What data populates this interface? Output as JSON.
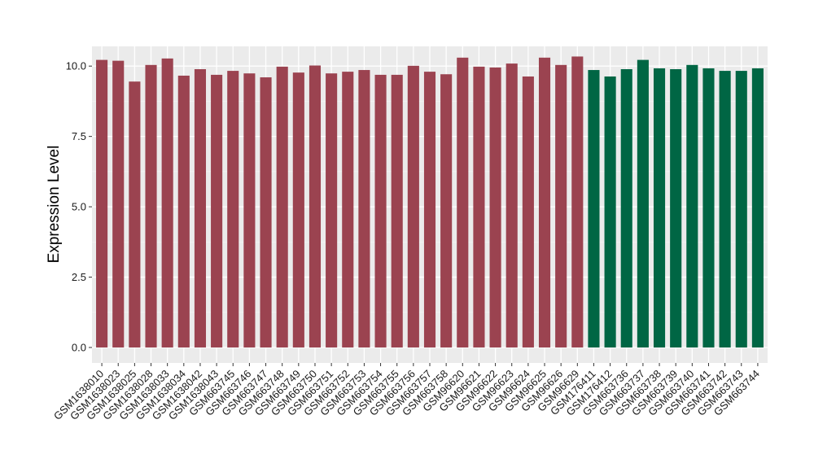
{
  "chart_data": {
    "type": "bar",
    "ylabel": "Expression Level",
    "ylim": [
      -0.55,
      10.7
    ],
    "yticks": [
      "0.0",
      "2.5",
      "5.0",
      "7.5",
      "10.0"
    ],
    "categories": [
      "GSM1638010",
      "GSM1638023",
      "GSM1638025",
      "GSM1638028",
      "GSM1638033",
      "GSM1638034",
      "GSM1638042",
      "GSM1638043",
      "GSM663745",
      "GSM663746",
      "GSM663747",
      "GSM663748",
      "GSM663749",
      "GSM663750",
      "GSM663751",
      "GSM663752",
      "GSM663753",
      "GSM663754",
      "GSM663755",
      "GSM663756",
      "GSM663757",
      "GSM663758",
      "GSM96620",
      "GSM96621",
      "GSM96622",
      "GSM96623",
      "GSM96624",
      "GSM96625",
      "GSM96626",
      "GSM96629",
      "GSM176411",
      "GSM176412",
      "GSM663736",
      "GSM663737",
      "GSM663738",
      "GSM663739",
      "GSM663740",
      "GSM663741",
      "GSM663742",
      "GSM663743",
      "GSM663744"
    ],
    "values": [
      10.22,
      10.19,
      9.45,
      10.04,
      10.27,
      9.66,
      9.89,
      9.69,
      9.83,
      9.74,
      9.6,
      9.98,
      9.77,
      10.02,
      9.74,
      9.8,
      9.86,
      9.69,
      9.69,
      10.01,
      9.8,
      9.71,
      10.3,
      9.98,
      9.95,
      10.09,
      9.63,
      10.3,
      10.04,
      10.34,
      9.86,
      9.63,
      9.89,
      10.22,
      9.92,
      9.89,
      10.04,
      9.92,
      9.83,
      9.83,
      9.92
    ],
    "groups": [
      0,
      0,
      0,
      0,
      0,
      0,
      0,
      0,
      0,
      0,
      0,
      0,
      0,
      0,
      0,
      0,
      0,
      0,
      0,
      0,
      0,
      0,
      0,
      0,
      0,
      0,
      0,
      0,
      0,
      0,
      1,
      1,
      1,
      1,
      1,
      1,
      1,
      1,
      1,
      1,
      1
    ],
    "group_colors": [
      "#9b4350",
      "#006644"
    ],
    "grid": true,
    "legend": "none"
  }
}
